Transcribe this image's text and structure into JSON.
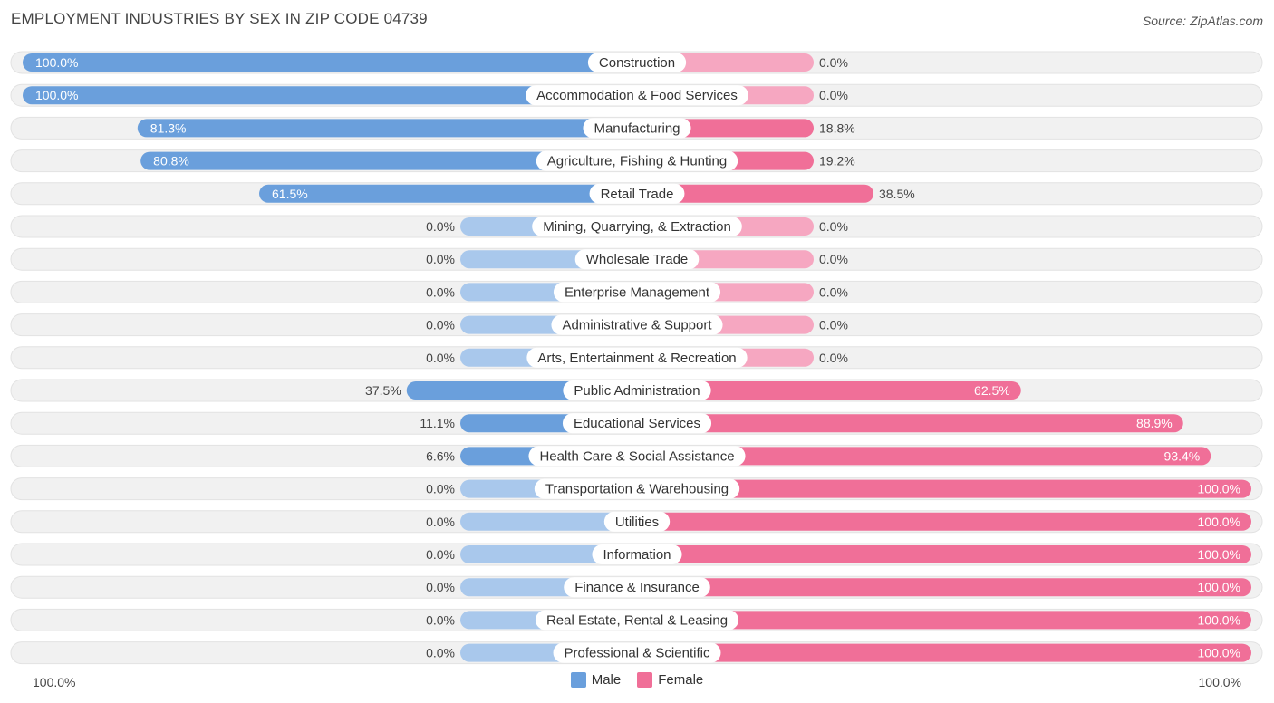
{
  "title": "EMPLOYMENT INDUSTRIES BY SEX IN ZIP CODE 04739",
  "source": "Source: ZipAtlas.com",
  "legend": {
    "male": "Male",
    "female": "Female"
  },
  "axis": {
    "left_label": "100.0%",
    "right_label": "100.0%"
  },
  "colors": {
    "male_strong": "#6a9fdc",
    "male_light": "#a9c8ec",
    "female_strong": "#f06f98",
    "female_light": "#f6a7c1",
    "row_bg": "#f1f1f1"
  },
  "chart_data": {
    "type": "bar",
    "orientation": "horizontal-diverging",
    "categories": [
      "Construction",
      "Accommodation & Food Services",
      "Manufacturing",
      "Agriculture, Fishing & Hunting",
      "Retail Trade",
      "Mining, Quarrying, & Extraction",
      "Wholesale Trade",
      "Enterprise Management",
      "Administrative & Support",
      "Arts, Entertainment & Recreation",
      "Public Administration",
      "Educational Services",
      "Health Care & Social Assistance",
      "Transportation & Warehousing",
      "Utilities",
      "Information",
      "Finance & Insurance",
      "Real Estate, Rental & Leasing",
      "Professional & Scientific"
    ],
    "series": [
      {
        "name": "Male",
        "values": [
          100.0,
          100.0,
          81.3,
          80.8,
          61.5,
          0.0,
          0.0,
          0.0,
          0.0,
          0.0,
          37.5,
          11.1,
          6.6,
          0.0,
          0.0,
          0.0,
          0.0,
          0.0,
          0.0
        ]
      },
      {
        "name": "Female",
        "values": [
          0.0,
          0.0,
          18.8,
          19.2,
          38.5,
          0.0,
          0.0,
          0.0,
          0.0,
          0.0,
          62.5,
          88.9,
          93.4,
          100.0,
          100.0,
          100.0,
          100.0,
          100.0,
          100.0
        ]
      }
    ],
    "value_labels": {
      "male": [
        "100.0%",
        "100.0%",
        "81.3%",
        "80.8%",
        "61.5%",
        "0.0%",
        "0.0%",
        "0.0%",
        "0.0%",
        "0.0%",
        "37.5%",
        "11.1%",
        "6.6%",
        "0.0%",
        "0.0%",
        "0.0%",
        "0.0%",
        "0.0%",
        "0.0%"
      ],
      "female": [
        "0.0%",
        "0.0%",
        "18.8%",
        "19.2%",
        "38.5%",
        "0.0%",
        "0.0%",
        "0.0%",
        "0.0%",
        "0.0%",
        "62.5%",
        "88.9%",
        "93.4%",
        "100.0%",
        "100.0%",
        "100.0%",
        "100.0%",
        "100.0%",
        "100.0%"
      ]
    },
    "xlim": [
      -100,
      100
    ],
    "legend_position": "bottom-center",
    "grid": false
  }
}
